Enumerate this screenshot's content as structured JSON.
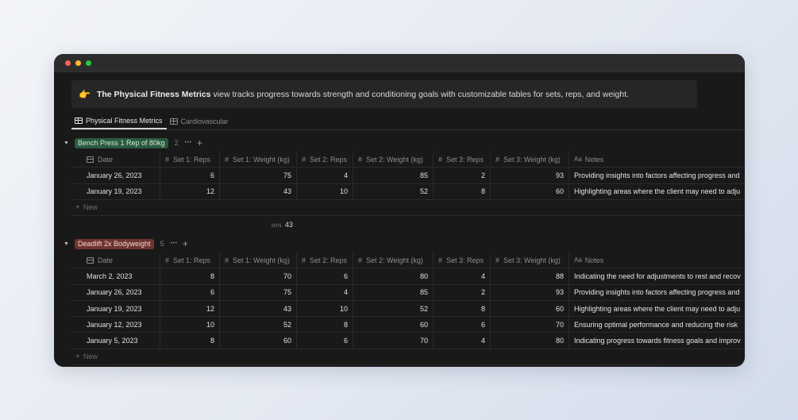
{
  "callout": {
    "emoji": "👉",
    "bold": "The Physical Fitness Metrics",
    "text": "view tracks progress towards strength and conditioning goals with customizable tables for sets, reps, and weight."
  },
  "tabs": [
    {
      "label": "Physical Fitness Metrics",
      "active": true
    },
    {
      "label": "Cardiovascular",
      "active": false
    }
  ],
  "columns": {
    "date": "Date",
    "set1_reps": "Set 1: Reps",
    "set1_weight": "Set 1: Weight (kg)",
    "set2_reps": "Set 2: Reps",
    "set2_weight": "Set 2: Weight (kg)",
    "set3_reps": "Set 3: Reps",
    "set3_weight": "Set 3: Weight (kg)",
    "notes": "Notes",
    "notes_icon": "Aa"
  },
  "new_label": "New",
  "groups": [
    {
      "name": "Bench Press 1 Rep of 80kg",
      "count": "2",
      "color": "#2b5a3f",
      "rows": [
        {
          "date": "January 26, 2023",
          "s1r": "6",
          "s1w": "75",
          "s2r": "4",
          "s2w": "85",
          "s3r": "2",
          "s3w": "93",
          "notes": "Providing insights into factors affecting progress and"
        },
        {
          "date": "January 19, 2023",
          "s1r": "12",
          "s1w": "43",
          "s2r": "10",
          "s2w": "52",
          "s3r": "8",
          "s3w": "60",
          "notes": "Highlighting areas where the client may need to adju"
        }
      ],
      "calc": {
        "label": "MIN",
        "value": "43"
      }
    },
    {
      "name": "Deadlift 2x Bodyweight",
      "count": "5",
      "color": "#6e3430",
      "rows": [
        {
          "date": "March 2, 2023",
          "s1r": "8",
          "s1w": "70",
          "s2r": "6",
          "s2w": "80",
          "s3r": "4",
          "s3w": "88",
          "notes": "Indicating the need for adjustments to rest and recov"
        },
        {
          "date": "January 26, 2023",
          "s1r": "6",
          "s1w": "75",
          "s2r": "4",
          "s2w": "85",
          "s3r": "2",
          "s3w": "93",
          "notes": "Providing insights into factors affecting progress and"
        },
        {
          "date": "January 19, 2023",
          "s1r": "12",
          "s1w": "43",
          "s2r": "10",
          "s2w": "52",
          "s3r": "8",
          "s3w": "60",
          "notes": "Highlighting areas where the client may need to adju"
        },
        {
          "date": "January 12, 2023",
          "s1r": "10",
          "s1w": "52",
          "s2r": "8",
          "s2w": "60",
          "s3r": "6",
          "s3w": "70",
          "notes": "Ensuring optimal performance and reducing the risk"
        },
        {
          "date": "January 5, 2023",
          "s1r": "8",
          "s1w": "60",
          "s2r": "6",
          "s2w": "70",
          "s3r": "4",
          "s3w": "80",
          "notes": "Indicating progress towards fitness goals and improv"
        }
      ]
    }
  ]
}
